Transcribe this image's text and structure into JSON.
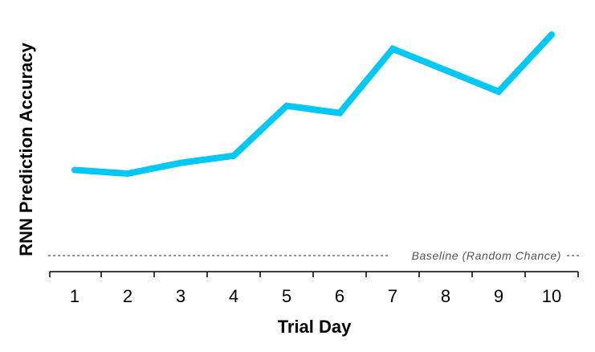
{
  "chart_data": {
    "type": "line",
    "title": "",
    "xlabel": "Trial Day",
    "ylabel": "RNN Prediction Accuracy",
    "x": [
      1,
      2,
      3,
      4,
      5,
      6,
      7,
      8,
      9,
      10
    ],
    "series": [
      {
        "values": [
          0.62,
          0.61,
          0.64,
          0.66,
          0.8,
          0.78,
          0.96,
          0.9,
          0.84,
          1.0
        ],
        "color": "#00c8f5"
      }
    ],
    "xlim": [
      0.5,
      10.5
    ],
    "ylim": [
      0.33,
      1.04
    ],
    "y_ticks_shown": false,
    "grid": false,
    "legend": "none",
    "reference_lines": [
      {
        "y": 0.38,
        "label": "Baseline (Random Chance)",
        "style": "dotted",
        "color": "#555555"
      }
    ]
  }
}
